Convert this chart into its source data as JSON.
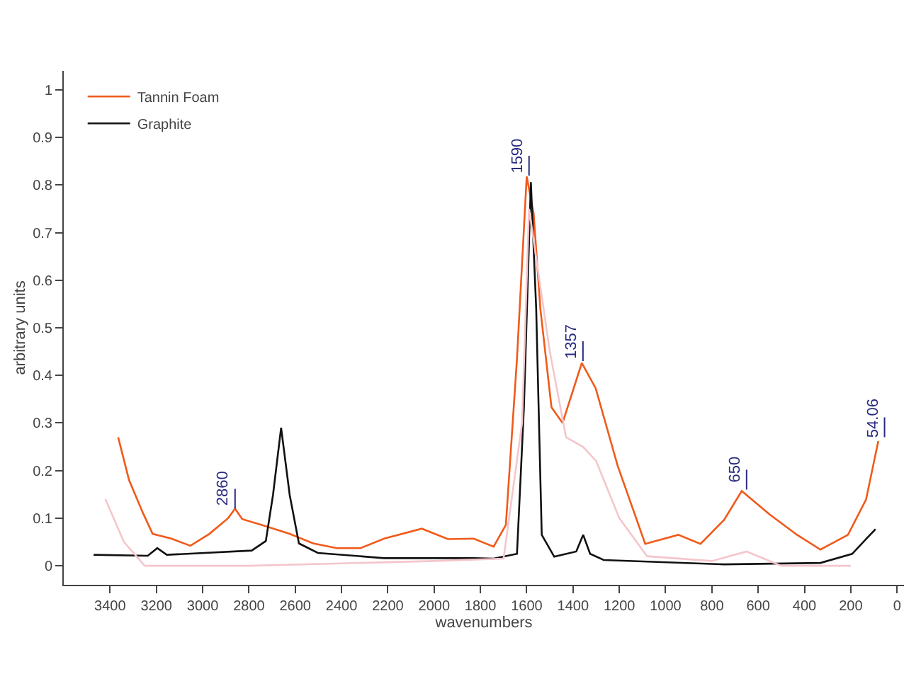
{
  "chart_data": {
    "type": "line",
    "xlabel": "wavenumbers",
    "ylabel": "arbitrary units",
    "xlim": [
      3600,
      -30
    ],
    "xticks": [
      0,
      200,
      400,
      600,
      800,
      1000,
      1200,
      1400,
      1600,
      1800,
      2000,
      2200,
      2400,
      2600,
      2800,
      3000,
      3200,
      3400
    ],
    "ylim": [
      -0.04,
      1.04
    ],
    "yticks": [
      0,
      0.1,
      0.2,
      0.3,
      0.4,
      0.5,
      0.6,
      0.7,
      0.8,
      0.9,
      1
    ],
    "legend": "top left",
    "marker": "none",
    "line_style": "solid",
    "series": [
      {
        "name": "Tannin Foam",
        "color": "#f05a1a",
        "x": [
          3365,
          3318,
          3257,
          3216,
          3135,
          3053,
          2971,
          2890,
          2860,
          2829,
          2727,
          2624,
          2522,
          2420,
          2318,
          2216,
          2053,
          1940,
          1829,
          1743,
          1690,
          1642,
          1600,
          1570,
          1541,
          1493,
          1445,
          1362,
          1302,
          1207,
          1088,
          945,
          849,
          748,
          671,
          551,
          432,
          331,
          212,
          134,
          81
        ],
        "values": [
          0.27,
          0.18,
          0.11,
          0.067,
          0.057,
          0.042,
          0.067,
          0.1,
          0.12,
          0.098,
          0.083,
          0.067,
          0.047,
          0.037,
          0.037,
          0.057,
          0.078,
          0.056,
          0.057,
          0.04,
          0.086,
          0.435,
          0.818,
          0.74,
          0.54,
          0.333,
          0.3,
          0.426,
          0.373,
          0.21,
          0.046,
          0.065,
          0.046,
          0.096,
          0.157,
          0.108,
          0.065,
          0.034,
          0.065,
          0.139,
          0.262
        ]
      },
      {
        "name": "Graphite",
        "color": "#111111",
        "x": [
          3471,
          3237,
          3196,
          3155,
          2788,
          2727,
          2696,
          2661,
          2624,
          2584,
          2502,
          2216,
          1829,
          1743,
          1642,
          1612,
          1582,
          1559,
          1535,
          1481,
          1386,
          1356,
          1326,
          1267,
          748,
          331,
          194,
          134,
          93
        ],
        "values": [
          0.023,
          0.021,
          0.037,
          0.023,
          0.032,
          0.052,
          0.149,
          0.29,
          0.149,
          0.047,
          0.027,
          0.016,
          0.016,
          0.015,
          0.025,
          0.333,
          0.806,
          0.54,
          0.065,
          0.019,
          0.03,
          0.065,
          0.025,
          0.012,
          0.003,
          0.006,
          0.025,
          0.056,
          0.077
        ]
      },
      {
        "color": "#f4c6cc",
        "x": [
          3420,
          3340,
          3250,
          3000,
          2800,
          2400,
          2000,
          1700,
          1620,
          1590,
          1560,
          1500,
          1430,
          1357,
          1300,
          1200,
          1080,
          800,
          650,
          500,
          200
        ],
        "values": [
          0.14,
          0.05,
          0.0,
          0.0,
          0.0,
          0.005,
          0.01,
          0.015,
          0.3,
          0.75,
          0.65,
          0.45,
          0.27,
          0.25,
          0.22,
          0.1,
          0.02,
          0.01,
          0.03,
          0.0,
          0.0
        ]
      }
    ],
    "annotations": [
      {
        "text": "2860",
        "x": 2860,
        "y": 0.12
      },
      {
        "text": "1590",
        "x": 1590,
        "y": 0.82
      },
      {
        "text": "1357",
        "x": 1357,
        "y": 0.43
      },
      {
        "text": "650",
        "x": 650,
        "y": 0.16
      },
      {
        "text": "54.06",
        "x": 54.06,
        "y": 0.27
      }
    ]
  }
}
